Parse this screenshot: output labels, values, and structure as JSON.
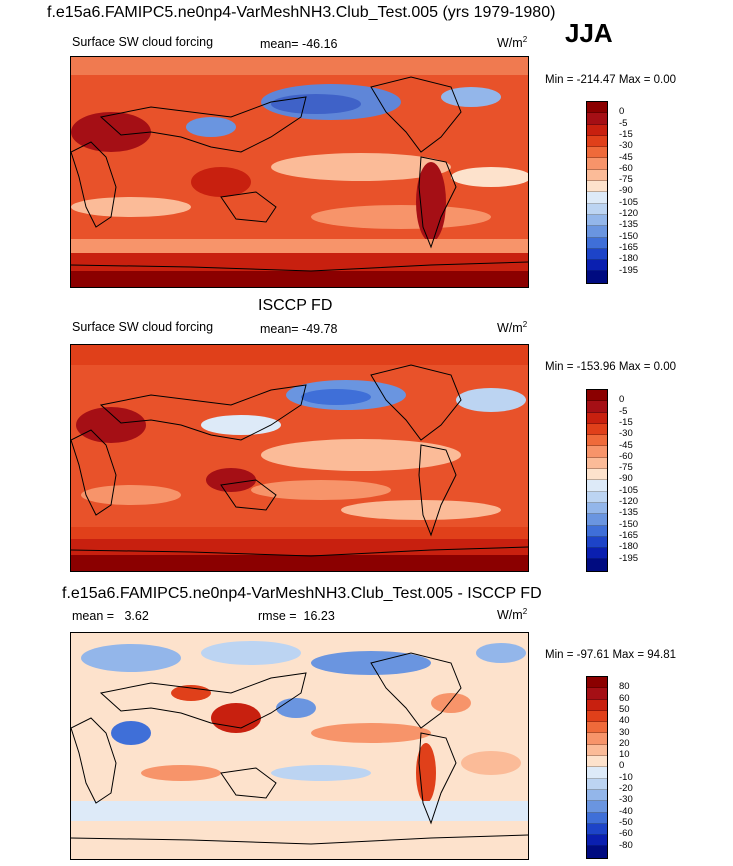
{
  "season": "JJA",
  "panels": [
    {
      "title": "f.e15a6.FAMIPC5.ne0np4-VarMeshNH3.Club_Test.005 (yrs 1979-1980)",
      "label_left": "Surface SW cloud forcing",
      "stat": "mean= -46.16",
      "units": "W/m",
      "units_sup": "2",
      "minmax": "Min = -214.47 Max =   0.00",
      "colorbar_labels": [
        "0",
        "-5",
        "-15",
        "-30",
        "-45",
        "-60",
        "-75",
        "-90",
        "-105",
        "-120",
        "-135",
        "-150",
        "-165",
        "-180",
        "-195"
      ],
      "colorbar_colors": [
        "#8b0000",
        "#a50f15",
        "#c8200f",
        "#e0401a",
        "#ef6a3a",
        "#f7946a",
        "#fbbb98",
        "#fde2cc",
        "#ddeaf8",
        "#bcd4f2",
        "#93b6ea",
        "#6a95e0",
        "#3f6fd8",
        "#1d44c8",
        "#0a1fb0",
        "#000b80"
      ],
      "map_label": "Model SW cloud forcing map"
    },
    {
      "title": "ISCCP FD",
      "label_left": "Surface SW cloud forcing",
      "stat": "mean= -49.78",
      "units": "W/m",
      "units_sup": "2",
      "minmax": "Min = -153.96 Max =   0.00",
      "colorbar_labels": [
        "0",
        "-5",
        "-15",
        "-30",
        "-45",
        "-60",
        "-75",
        "-90",
        "-105",
        "-120",
        "-135",
        "-150",
        "-165",
        "-180",
        "-195"
      ],
      "colorbar_colors": [
        "#8b0000",
        "#a50f15",
        "#c8200f",
        "#e0401a",
        "#ef6a3a",
        "#f7946a",
        "#fbbb98",
        "#fde2cc",
        "#ddeaf8",
        "#bcd4f2",
        "#93b6ea",
        "#6a95e0",
        "#3f6fd8",
        "#1d44c8",
        "#0a1fb0",
        "#000b80"
      ],
      "map_label": "ISCCP FD SW cloud forcing map"
    },
    {
      "title": "f.e15a6.FAMIPC5.ne0np4-VarMeshNH3.Club_Test.005 - ISCCP FD",
      "label_left": "mean =   3.62",
      "stat": "rmse =  16.23",
      "units": "W/m",
      "units_sup": "2",
      "minmax": "Min = -97.61 Max =  94.81",
      "colorbar_labels": [
        "80",
        "60",
        "50",
        "40",
        "30",
        "20",
        "10",
        "0",
        "-10",
        "-20",
        "-30",
        "-40",
        "-50",
        "-60",
        "-80"
      ],
      "colorbar_colors": [
        "#8b0000",
        "#a50f15",
        "#c8200f",
        "#e0401a",
        "#ef6a3a",
        "#f7946a",
        "#fbbb98",
        "#fde2cc",
        "#ddeaf8",
        "#bcd4f2",
        "#93b6ea",
        "#6a95e0",
        "#3f6fd8",
        "#1d44c8",
        "#0a1fb0",
        "#000b80"
      ],
      "map_label": "Difference map"
    }
  ]
}
